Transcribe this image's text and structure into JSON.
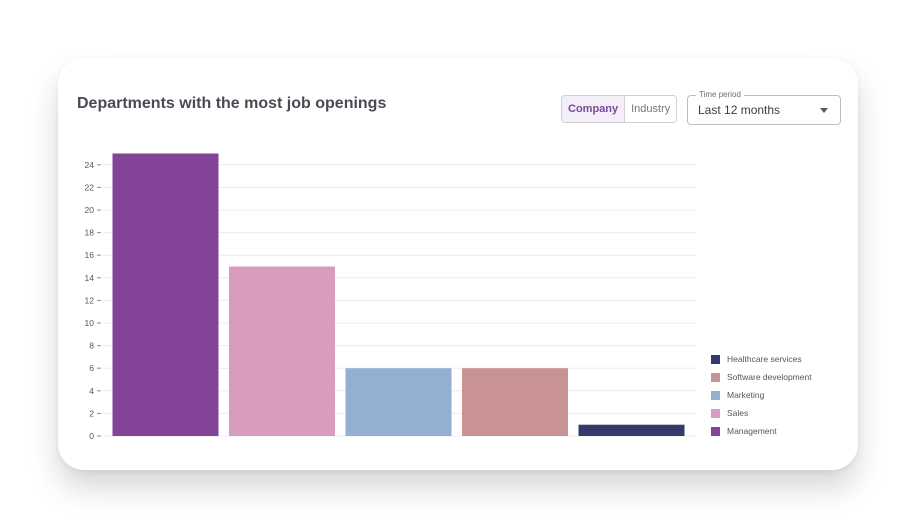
{
  "header": {
    "title": "Departments with the most job openings"
  },
  "toggle": {
    "options": [
      "Company",
      "Industry"
    ],
    "active": "Company"
  },
  "time_period": {
    "label": "Time period",
    "value": "Last 12 months"
  },
  "chart_data": {
    "type": "bar",
    "categories": [
      "Management",
      "Sales",
      "Marketing",
      "Software development",
      "Healthcare services"
    ],
    "values": [
      25,
      15,
      6,
      6,
      1
    ],
    "colors": [
      "#834396",
      "#d89cbf",
      "#93b0d1",
      "#c99294",
      "#363a6a"
    ],
    "ylim": [
      0,
      25
    ],
    "yticks": [
      0,
      2,
      4,
      6,
      8,
      10,
      12,
      14,
      16,
      18,
      20,
      22,
      24
    ],
    "grid": true,
    "legend_position": "bottom-right",
    "legend_order": [
      "Healthcare services",
      "Software development",
      "Marketing",
      "Sales",
      "Management"
    ]
  }
}
